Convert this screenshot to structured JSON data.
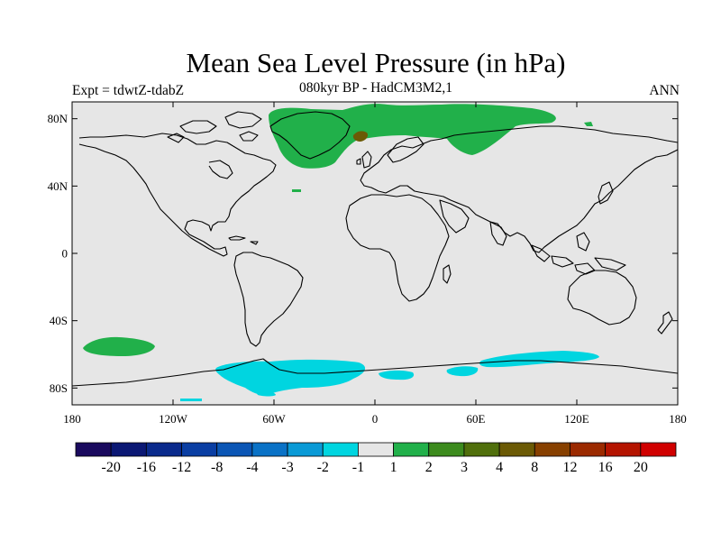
{
  "header": {
    "title": "Mean Sea Level Pressure (in hPa)",
    "subtitle": "080kyr BP - HadCM3M2,1",
    "left_label": "Expt = tdwtZ-tdabZ",
    "right_label": "ANN"
  },
  "map": {
    "projection": "cylindrical-equidistant",
    "lon_range": [
      -180,
      180
    ],
    "lat_range": [
      -90,
      90
    ],
    "background_color": "#e6e6e6",
    "lat_ticks": [
      {
        "value": 80,
        "label": "80N"
      },
      {
        "value": 40,
        "label": "40N"
      },
      {
        "value": 0,
        "label": "0"
      },
      {
        "value": -40,
        "label": "40S"
      },
      {
        "value": -80,
        "label": "80S"
      }
    ],
    "lon_ticks": [
      {
        "value": -180,
        "label": "180"
      },
      {
        "value": -120,
        "label": "120W"
      },
      {
        "value": -60,
        "label": "60W"
      },
      {
        "value": 0,
        "label": "0"
      },
      {
        "value": 60,
        "label": "60E"
      },
      {
        "value": 120,
        "label": "120E"
      },
      {
        "value": 180,
        "label": "180"
      }
    ]
  },
  "colorbar": {
    "colors": [
      "#1a0a5e",
      "#0b1874",
      "#0a2a8c",
      "#0a3ea3",
      "#0b56b5",
      "#0a72c6",
      "#0a9ad6",
      "#00d5e0",
      "#e6e6e6",
      "#21b04a",
      "#3c8b1e",
      "#506f0c",
      "#6b5a05",
      "#874000",
      "#9b2a00",
      "#b41400",
      "#d00000"
    ],
    "labels": [
      "-20",
      "-16",
      "-12",
      "-8",
      "-4",
      "-3",
      "-2",
      "-1",
      "1",
      "2",
      "3",
      "4",
      "8",
      "12",
      "16",
      "20"
    ]
  }
}
